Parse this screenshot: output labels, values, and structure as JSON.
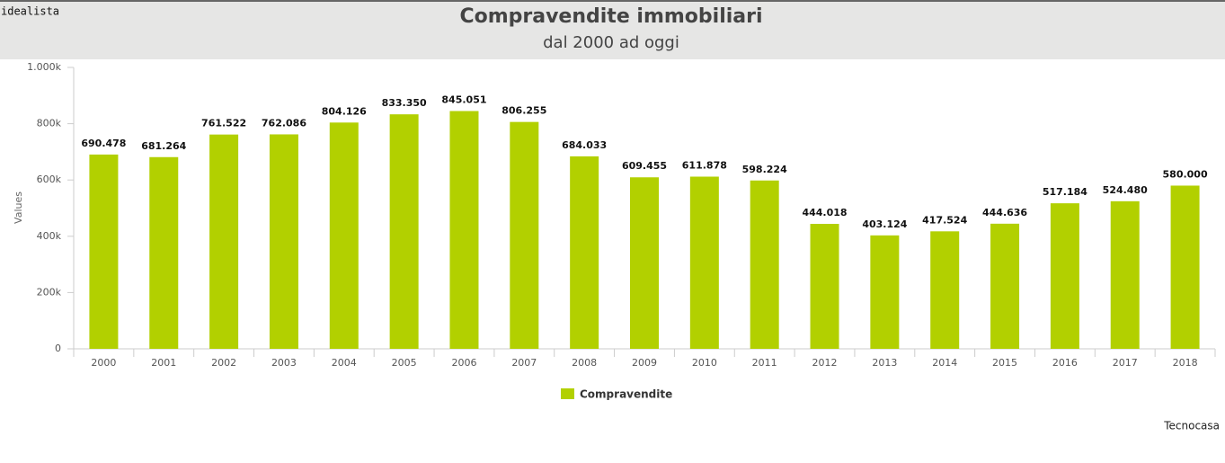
{
  "header": {
    "brand": "idealista"
  },
  "chart_data": {
    "type": "bar",
    "title": "Compravendite immobiliari",
    "subtitle": "dal 2000 ad oggi",
    "y_label": "Values",
    "categories": [
      "2000",
      "2001",
      "2002",
      "2003",
      "2004",
      "2005",
      "2006",
      "2007",
      "2008",
      "2009",
      "2010",
      "2011",
      "2012",
      "2013",
      "2014",
      "2015",
      "2016",
      "2017",
      "2018"
    ],
    "series": [
      {
        "name": "Compravendite",
        "color": "#b2d000",
        "values": [
          690478,
          681264,
          761522,
          762086,
          804126,
          833350,
          845051,
          806255,
          684033,
          609455,
          611878,
          598224,
          444018,
          403124,
          417524,
          444636,
          517184,
          524480,
          580000
        ],
        "value_labels": [
          "690.478",
          "681.264",
          "761.522",
          "762.086",
          "804.126",
          "833.350",
          "845.051",
          "806.255",
          "684.033",
          "609.455",
          "611.878",
          "598.224",
          "444.018",
          "403.124",
          "417.524",
          "444.636",
          "517.184",
          "524.480",
          "580.000"
        ]
      }
    ],
    "ylim": [
      0,
      1000000
    ],
    "yticks": [
      0,
      {
        "value": 200000,
        "label": "200k"
      },
      {
        "value": 400000,
        "label": "400k"
      },
      {
        "value": 600000,
        "label": "600k"
      },
      {
        "value": 800000,
        "label": "800k"
      },
      {
        "value": 1000000,
        "label": "1.000k"
      }
    ],
    "grid": false,
    "legend": "bottom"
  },
  "footer": {
    "credit": "Tecnocasa"
  }
}
